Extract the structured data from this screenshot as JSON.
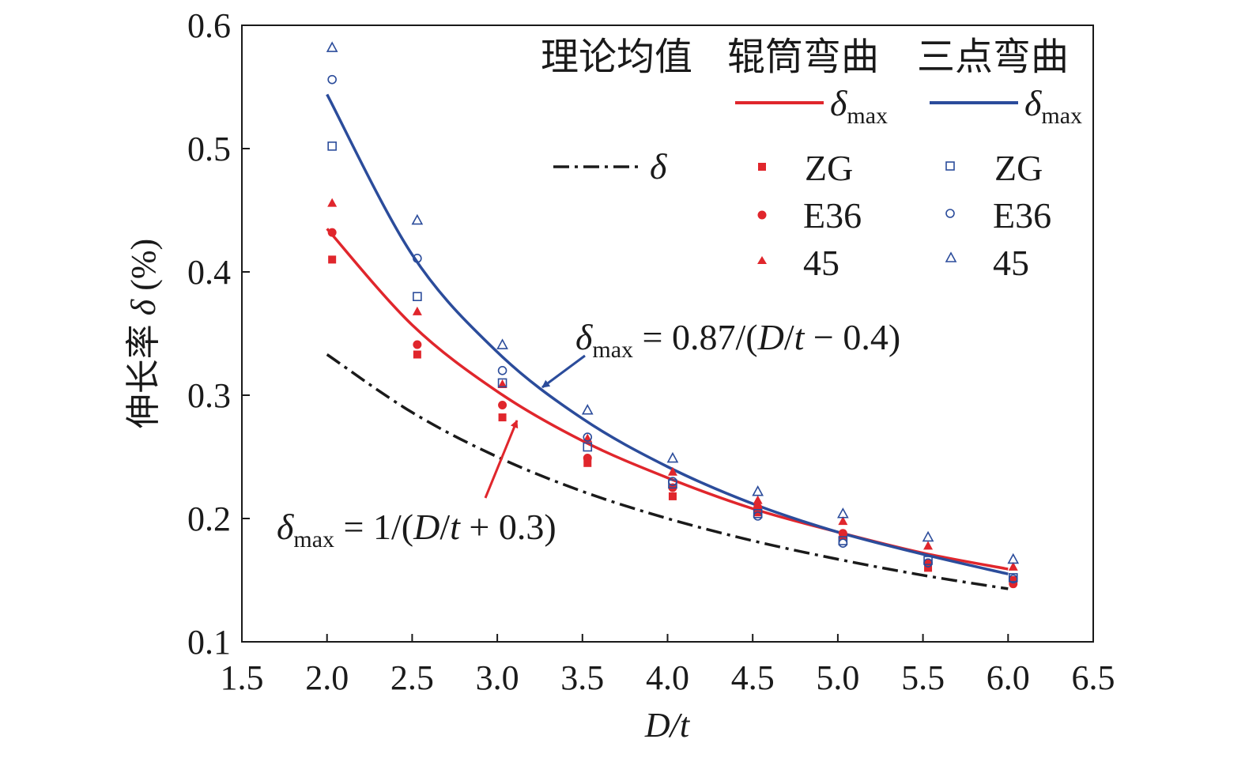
{
  "chart_data": {
    "type": "scatter",
    "xlabel": "D/t",
    "ylabel": "伸长率 δ (%)",
    "xlim": [
      1.5,
      6.5
    ],
    "ylim": [
      0.1,
      0.6
    ],
    "xticks": [
      "1.5",
      "2.0",
      "2.5",
      "3.0",
      "3.5",
      "4.0",
      "4.5",
      "5.0",
      "5.5",
      "6.0",
      "6.5"
    ],
    "yticks": [
      "0.1",
      "0.2",
      "0.3",
      "0.4",
      "0.5",
      "0.6"
    ],
    "grid": false,
    "legend_position": "top-right",
    "legend_headers": [
      "理论均值",
      "辊筒弯曲",
      "三点弯曲"
    ],
    "series": [
      {
        "name": "δmax",
        "group": "辊筒弯曲",
        "kind": "line",
        "color": "#e0262c",
        "formula": "δmax = 1/(D/t + 0.3)",
        "x": [
          2.0,
          2.5,
          3.0,
          3.5,
          4.0,
          4.5,
          5.0,
          5.5,
          6.0
        ],
        "y": [
          0.435,
          0.357,
          0.303,
          0.263,
          0.233,
          0.208,
          0.189,
          0.172,
          0.159
        ]
      },
      {
        "name": "δmax",
        "group": "三点弯曲",
        "kind": "line",
        "color": "#2b4c9b",
        "formula": "δmax = 0.87/(D/t − 0.4)",
        "x": [
          2.0,
          2.5,
          3.0,
          3.5,
          4.0,
          4.5,
          5.0,
          5.5,
          6.0
        ],
        "y": [
          0.544,
          0.414,
          0.335,
          0.281,
          0.242,
          0.212,
          0.189,
          0.171,
          0.155
        ]
      },
      {
        "name": "δ",
        "group": "理论均值",
        "kind": "dashdot",
        "color": "#1a1a1a",
        "x": [
          2.0,
          2.5,
          3.0,
          3.5,
          4.0,
          4.5,
          5.0,
          5.5,
          6.0
        ],
        "y": [
          0.333,
          0.286,
          0.25,
          0.222,
          0.2,
          0.182,
          0.167,
          0.154,
          0.143
        ]
      },
      {
        "name": "ZG",
        "group": "辊筒弯曲",
        "kind": "marker",
        "marker": "square-filled",
        "color": "#e0262c",
        "x": [
          2.03,
          2.53,
          3.03,
          3.53,
          4.03,
          4.53,
          5.03,
          5.53,
          6.03
        ],
        "y": [
          0.41,
          0.333,
          0.282,
          0.245,
          0.218,
          0.205,
          0.186,
          0.16,
          0.15
        ]
      },
      {
        "name": "E36",
        "group": "辊筒弯曲",
        "kind": "marker",
        "marker": "circle-filled",
        "color": "#e0262c",
        "x": [
          2.03,
          2.53,
          3.03,
          3.53,
          4.03,
          4.53,
          5.03,
          5.53,
          6.03
        ],
        "y": [
          0.432,
          0.341,
          0.292,
          0.249,
          0.225,
          0.209,
          0.188,
          0.164,
          0.147
        ]
      },
      {
        "name": "45",
        "group": "辊筒弯曲",
        "kind": "marker",
        "marker": "triangle-filled",
        "color": "#e0262c",
        "x": [
          2.03,
          2.53,
          3.03,
          3.53,
          4.03,
          4.53,
          5.03,
          5.53,
          6.03
        ],
        "y": [
          0.456,
          0.368,
          0.309,
          0.265,
          0.238,
          0.215,
          0.198,
          0.178,
          0.161
        ]
      },
      {
        "name": "ZG",
        "group": "三点弯曲",
        "kind": "marker",
        "marker": "square-open",
        "color": "#2b4c9b",
        "x": [
          2.03,
          2.53,
          3.03,
          3.53,
          4.03,
          4.53,
          5.03,
          5.53,
          6.03
        ],
        "y": [
          0.502,
          0.38,
          0.31,
          0.258,
          0.228,
          0.204,
          0.182,
          0.166,
          0.152
        ]
      },
      {
        "name": "E36",
        "group": "三点弯曲",
        "kind": "marker",
        "marker": "circle-open",
        "color": "#2b4c9b",
        "x": [
          2.03,
          2.53,
          3.03,
          3.53,
          4.03,
          4.53,
          5.03,
          5.53,
          6.03
        ],
        "y": [
          0.556,
          0.411,
          0.32,
          0.266,
          0.23,
          0.202,
          0.18,
          0.164,
          0.151
        ]
      },
      {
        "name": "45",
        "group": "三点弯曲",
        "kind": "marker",
        "marker": "triangle-open",
        "color": "#2b4c9b",
        "x": [
          2.03,
          2.53,
          3.03,
          3.53,
          4.03,
          4.53,
          5.03,
          5.53,
          6.03
        ],
        "y": [
          0.582,
          0.442,
          0.341,
          0.288,
          0.249,
          0.222,
          0.204,
          0.185,
          0.167
        ]
      }
    ],
    "annotations": [
      {
        "text": "δmax = 0.87/(D/t − 0.4)",
        "arrow_to": [
          3.25,
          0.301
        ],
        "color": "#2b4c9b"
      },
      {
        "text": "δmax = 1/(D/t + 0.3)",
        "arrow_to": [
          3.15,
          0.293
        ],
        "color": "#e0262c"
      }
    ]
  }
}
